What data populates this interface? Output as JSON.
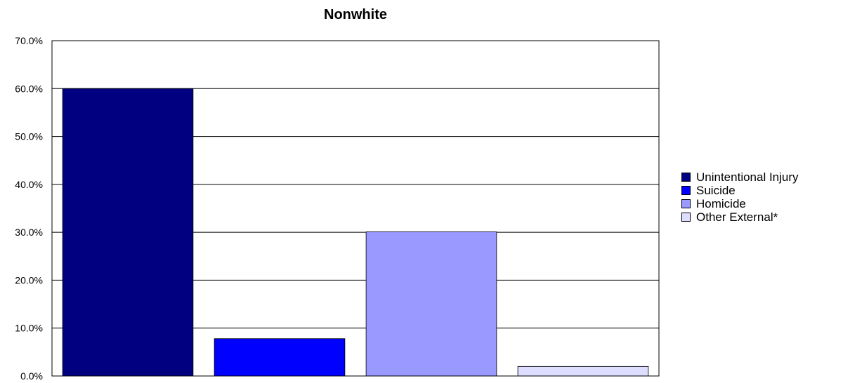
{
  "chart_data": {
    "type": "bar",
    "title": "Nonwhite",
    "xlabel": "",
    "ylabel": "",
    "ylim": [
      0,
      70
    ],
    "yticks": [
      "0.0%",
      "10.0%",
      "20.0%",
      "30.0%",
      "40.0%",
      "50.0%",
      "60.0%",
      "70.0%"
    ],
    "grid": true,
    "legend_position": "right",
    "series": [
      {
        "name": "Unintentional Injury",
        "value": 60.0,
        "color": "#000080"
      },
      {
        "name": "Suicide",
        "value": 7.8,
        "color": "#0000FF"
      },
      {
        "name": "Homicide",
        "value": 30.1,
        "color": "#9999FF"
      },
      {
        "name": "Other External*",
        "value": 2.0,
        "color": "#DDDDFF"
      }
    ]
  }
}
